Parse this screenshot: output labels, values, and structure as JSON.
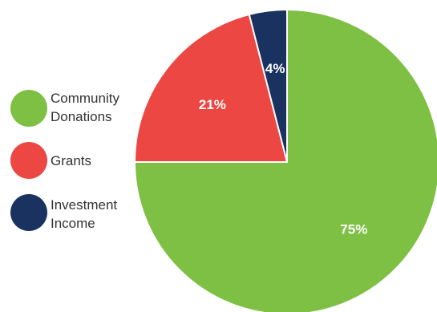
{
  "chart_data": {
    "type": "pie",
    "title": "",
    "start_angle": "top, clockwise",
    "slices": [
      {
        "name": "Community Donations",
        "value": 75,
        "label": "75%",
        "color": "#7dc043"
      },
      {
        "name": "Grants",
        "value": 21,
        "label": "21%",
        "color": "#ec4743"
      },
      {
        "name": "Investment Income",
        "value": 4,
        "label": "4%",
        "color": "#1a3260"
      }
    ],
    "legend": {
      "placement": "left",
      "items": [
        {
          "lines": [
            "Community",
            "Donations"
          ],
          "color": "#7dc043"
        },
        {
          "lines": [
            "Grants"
          ],
          "color": "#ec4743"
        },
        {
          "lines": [
            "Investment",
            "Income"
          ],
          "color": "#1a3260"
        }
      ]
    }
  }
}
